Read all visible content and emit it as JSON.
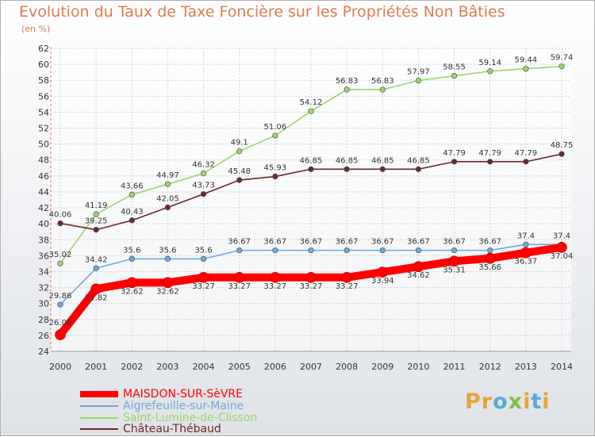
{
  "title": "Evolution du Taux de Taxe Foncière sur les Propriétés Non Bâties",
  "unit_label": "(en %)",
  "logo": {
    "text_parts": [
      "Pr",
      "o",
      "x",
      "i",
      "t",
      "i"
    ],
    "colors": [
      "#e8a33a",
      "#5aa7d8",
      "#7cc044",
      "#e8a33a",
      "#5aa7d8",
      "#e8a33a"
    ]
  },
  "chart_data": {
    "type": "line",
    "title": "Evolution du Taux de Taxe Foncière sur les Propriétés Non Bâties",
    "ylabel": "(en %)",
    "xlabel": "",
    "ylim": [
      24,
      62
    ],
    "ytick_step": 2,
    "x": [
      "2000",
      "2001",
      "2002",
      "2003",
      "2004",
      "2005",
      "2006",
      "2007",
      "2008",
      "2009",
      "2010",
      "2011",
      "2012",
      "2013",
      "2014"
    ],
    "grid": true,
    "series": [
      {
        "name": "MAISDON-SUR-SèVRE",
        "color": "#ff0000",
        "emphasis": true,
        "values": [
          26.08,
          31.82,
          32.62,
          32.62,
          33.27,
          33.27,
          33.27,
          33.27,
          33.27,
          33.94,
          34.62,
          35.31,
          35.66,
          36.37,
          37.04
        ],
        "labels": [
          "26.08",
          "31.82",
          "32.62",
          "32.62",
          "33.27",
          "33.27",
          "33.27",
          "33.27",
          "33.27",
          "33.94",
          "34.62",
          "35.31",
          "35.66",
          "36.37",
          "37.04"
        ]
      },
      {
        "name": "Aigrefeuille-sur-Maine",
        "color": "#6fa8dc",
        "emphasis": false,
        "values": [
          29.86,
          34.42,
          35.6,
          35.6,
          35.6,
          36.67,
          36.67,
          36.67,
          36.67,
          36.67,
          36.67,
          36.67,
          36.67,
          37.4,
          37.4
        ],
        "labels": [
          "29.86",
          "34.42",
          "35.6",
          "35.6",
          "35.6",
          "36.67",
          "36.67",
          "36.67",
          "36.67",
          "36.67",
          "36.67",
          "36.67",
          "36.67",
          "37.4",
          "37.4"
        ]
      },
      {
        "name": "Saint-Lumine-de-Clisson",
        "color": "#9bd66a",
        "emphasis": false,
        "values": [
          35.02,
          41.19,
          43.66,
          44.97,
          46.32,
          49.1,
          51.06,
          54.12,
          56.83,
          56.83,
          57.97,
          58.55,
          59.14,
          59.44,
          59.74
        ],
        "labels": [
          "35.02",
          "41.19",
          "43.66",
          "44.97",
          "46.32",
          "49.1",
          "51.06",
          "54.12",
          "56.83",
          "56.83",
          "57.97",
          "58.55",
          "59.14",
          "59.44",
          "59.74"
        ]
      },
      {
        "name": "Château-Thébaud",
        "color": "#6b2a2a",
        "emphasis": false,
        "values": [
          40.06,
          39.25,
          40.43,
          42.05,
          43.73,
          45.48,
          45.93,
          46.85,
          46.85,
          46.85,
          46.85,
          47.79,
          47.79,
          47.79,
          48.75
        ],
        "labels": [
          "40.06",
          "39.25",
          "40.43",
          "42.05",
          "43.73",
          "45.48",
          "45.93",
          "46.85",
          "46.85",
          "46.85",
          "46.85",
          "47.79",
          "47.79",
          "47.79",
          "48.75"
        ]
      }
    ]
  }
}
